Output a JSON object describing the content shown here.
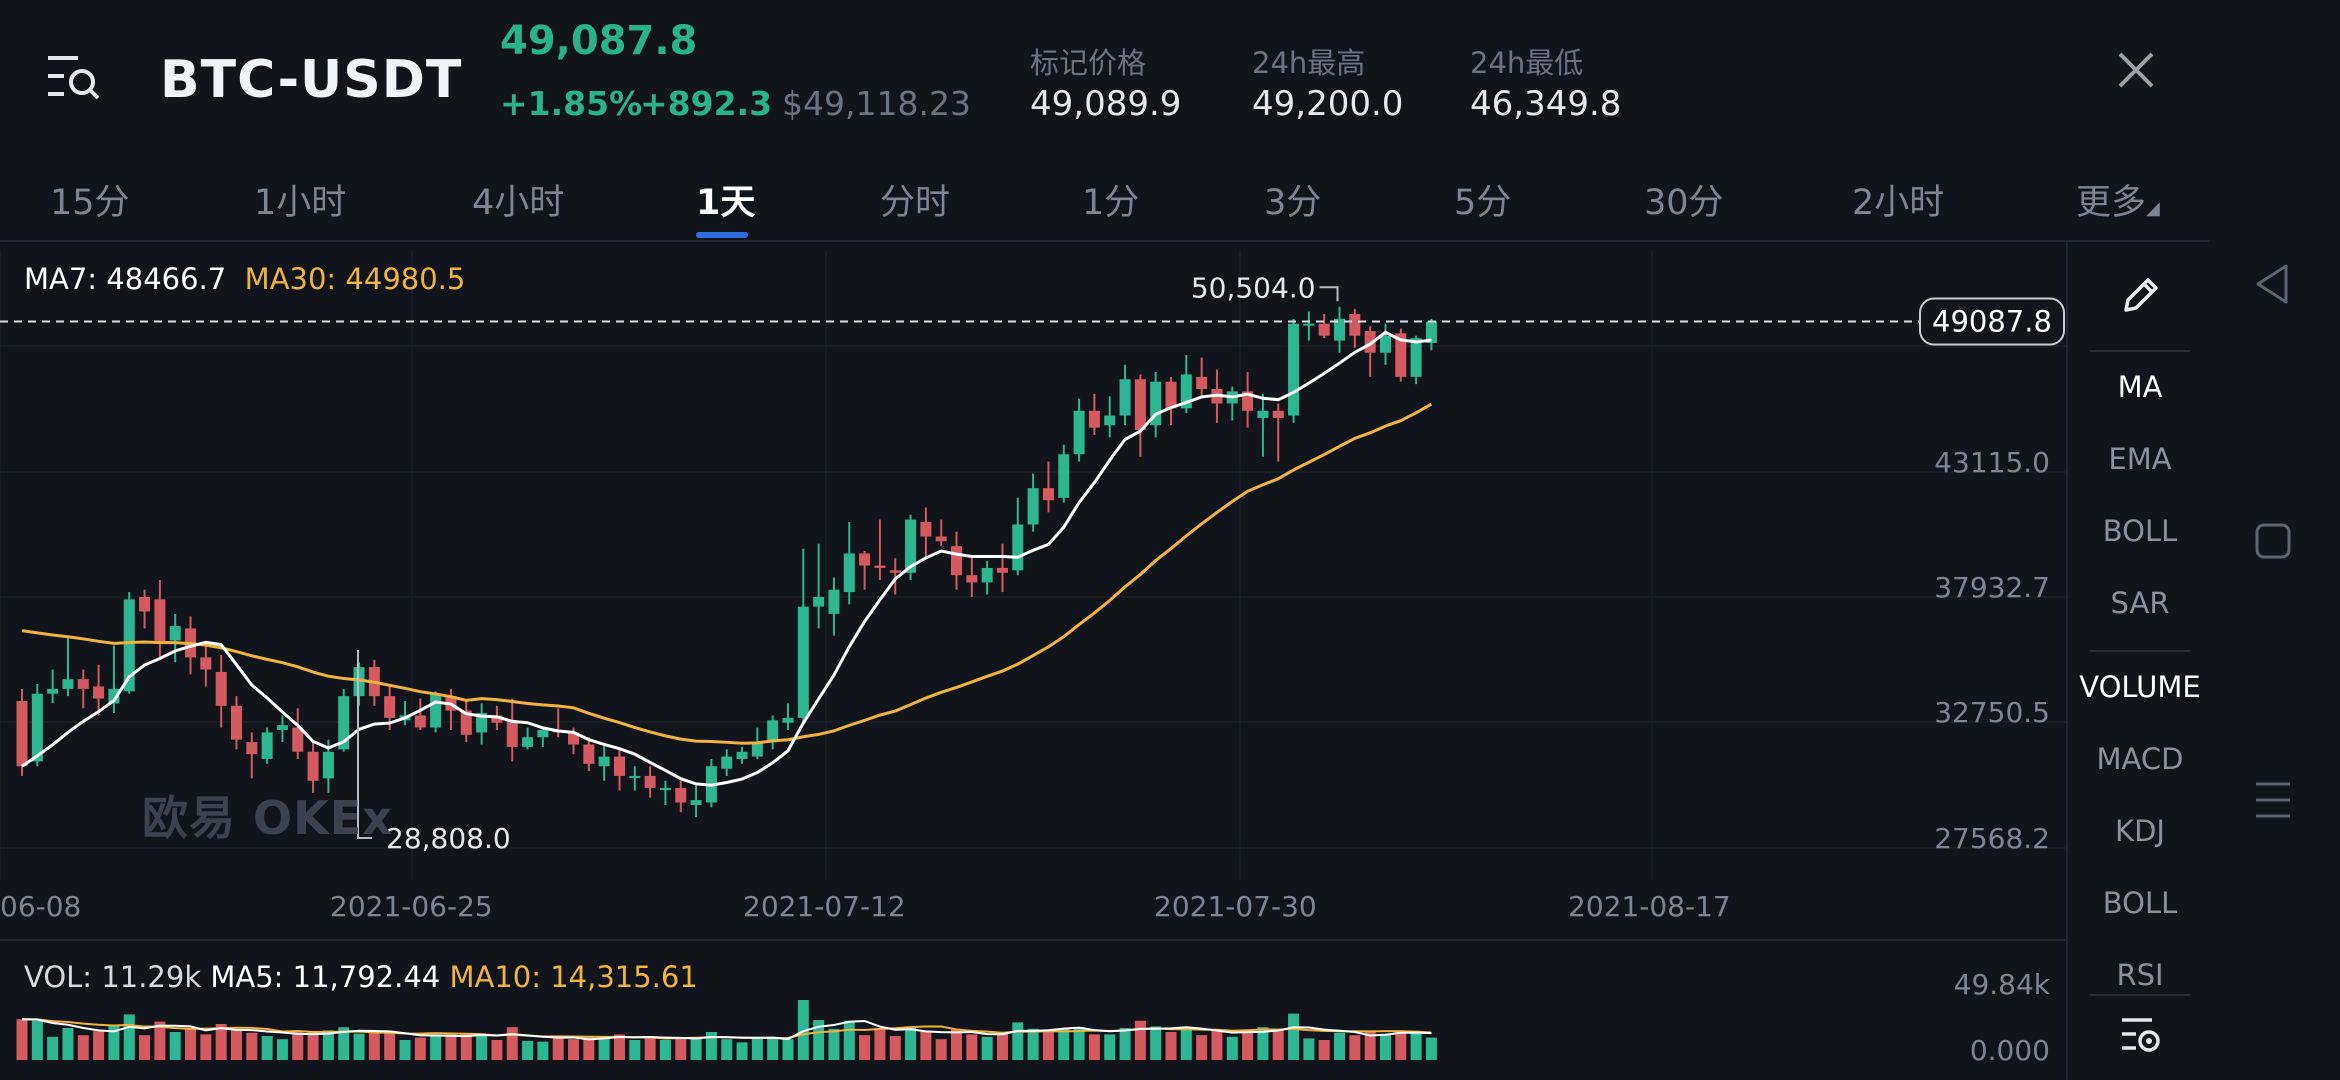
{
  "header": {
    "pair": "BTC-USDT",
    "last_price": "49,087.8",
    "change_pct": "+1.85%",
    "change_value": "+892.3",
    "usd_price": "$49,118.23",
    "stats": [
      {
        "label": "标记价格",
        "value": "49,089.9"
      },
      {
        "label": "24h最高",
        "value": "49,200.0"
      },
      {
        "label": "24h最低",
        "value": "46,349.8"
      }
    ]
  },
  "tabs": [
    "15分",
    "1小时",
    "4小时",
    "1天",
    "分时",
    "1分",
    "3分",
    "5分",
    "30分",
    "2小时",
    "更多"
  ],
  "active_tab": "1天",
  "main_chart": {
    "ma7_label": "MA7: 48466.7",
    "ma30_label": "MA30: 44980.5",
    "current_price_tag": "49087.8",
    "high_marker": "50,504.0",
    "low_marker": "28,808.0",
    "watermark": "欧易 OKEx",
    "price_axis": [
      "43115.0",
      "37932.7",
      "32750.5",
      "27568.2"
    ],
    "date_axis": [
      "06-08",
      "2021-06-25",
      "2021-07-12",
      "2021-07-30",
      "2021-08-17"
    ]
  },
  "volume_chart": {
    "vol_label": "VOL: 11.29k",
    "ma5_label": "MA5: 11,792.44",
    "ma10_label": "MA10: 14,315.61",
    "axis_top": "49.84k",
    "axis_bottom": "0.000"
  },
  "side_panel": {
    "items_main": [
      "MA",
      "EMA",
      "BOLL",
      "SAR"
    ],
    "items_sub": [
      "VOLUME",
      "MACD",
      "KDJ",
      "BOLL",
      "RSI"
    ]
  },
  "colors": {
    "up": "#2db692",
    "down": "#d45a5f",
    "ma7": "#ffffff",
    "ma30": "#f0b43c",
    "accent": "#2f6de1"
  },
  "chart_data": {
    "type": "candlestick",
    "interval": "1天",
    "candles": [
      {
        "o": 33400,
        "h": 33900,
        "l": 30300,
        "c": 30700
      },
      {
        "o": 30900,
        "h": 34100,
        "l": 30700,
        "c": 33700
      },
      {
        "o": 33700,
        "h": 34700,
        "l": 33300,
        "c": 33900
      },
      {
        "o": 33900,
        "h": 36100,
        "l": 33600,
        "c": 34300
      },
      {
        "o": 34300,
        "h": 34700,
        "l": 33100,
        "c": 33900
      },
      {
        "o": 34000,
        "h": 34900,
        "l": 32800,
        "c": 33500
      },
      {
        "o": 33300,
        "h": 35700,
        "l": 32900,
        "c": 33900
      },
      {
        "o": 33800,
        "h": 37900,
        "l": 33700,
        "c": 37600
      },
      {
        "o": 37700,
        "h": 38000,
        "l": 36400,
        "c": 37100
      },
      {
        "o": 37600,
        "h": 38400,
        "l": 35100,
        "c": 35800
      },
      {
        "o": 35900,
        "h": 37000,
        "l": 35000,
        "c": 36500
      },
      {
        "o": 36400,
        "h": 36900,
        "l": 34500,
        "c": 35200
      },
      {
        "o": 35200,
        "h": 35700,
        "l": 34000,
        "c": 34700
      },
      {
        "o": 34600,
        "h": 35300,
        "l": 32300,
        "c": 33200
      },
      {
        "o": 33200,
        "h": 33600,
        "l": 31400,
        "c": 31800
      },
      {
        "o": 31700,
        "h": 32100,
        "l": 30200,
        "c": 31200
      },
      {
        "o": 31000,
        "h": 32300,
        "l": 30800,
        "c": 32100
      },
      {
        "o": 32200,
        "h": 32800,
        "l": 31700,
        "c": 32400
      },
      {
        "o": 32300,
        "h": 33100,
        "l": 31000,
        "c": 31300
      },
      {
        "o": 31300,
        "h": 31700,
        "l": 29600,
        "c": 30100
      },
      {
        "o": 30200,
        "h": 31800,
        "l": 29600,
        "c": 31300
      },
      {
        "o": 31400,
        "h": 33900,
        "l": 31300,
        "c": 33600
      },
      {
        "o": 33600,
        "h": 35000,
        "l": 33200,
        "c": 34800
      },
      {
        "o": 34800,
        "h": 35100,
        "l": 33200,
        "c": 33600
      },
      {
        "o": 33600,
        "h": 34100,
        "l": 32200,
        "c": 32700
      },
      {
        "o": 32600,
        "h": 33400,
        "l": 32400,
        "c": 32800
      },
      {
        "o": 32800,
        "h": 33500,
        "l": 32200,
        "c": 32300
      },
      {
        "o": 32300,
        "h": 33800,
        "l": 32100,
        "c": 33700
      },
      {
        "o": 33600,
        "h": 33900,
        "l": 32200,
        "c": 33000
      },
      {
        "o": 33000,
        "h": 33400,
        "l": 31700,
        "c": 32000
      },
      {
        "o": 32100,
        "h": 33300,
        "l": 31600,
        "c": 32900
      },
      {
        "o": 32800,
        "h": 33200,
        "l": 32200,
        "c": 32500
      },
      {
        "o": 32600,
        "h": 33500,
        "l": 30900,
        "c": 31500
      },
      {
        "o": 31500,
        "h": 32300,
        "l": 31400,
        "c": 31900
      },
      {
        "o": 31900,
        "h": 32300,
        "l": 31500,
        "c": 32200
      },
      {
        "o": 32200,
        "h": 33100,
        "l": 31900,
        "c": 32100
      },
      {
        "o": 32100,
        "h": 32300,
        "l": 31200,
        "c": 31600
      },
      {
        "o": 31600,
        "h": 31900,
        "l": 30500,
        "c": 30800
      },
      {
        "o": 30700,
        "h": 31600,
        "l": 30100,
        "c": 31100
      },
      {
        "o": 31100,
        "h": 31400,
        "l": 29700,
        "c": 30300
      },
      {
        "o": 30300,
        "h": 30700,
        "l": 29700,
        "c": 30300
      },
      {
        "o": 30300,
        "h": 30700,
        "l": 29400,
        "c": 29800
      },
      {
        "o": 29800,
        "h": 30100,
        "l": 29100,
        "c": 29800
      },
      {
        "o": 29800,
        "h": 30100,
        "l": 28800,
        "c": 29200
      },
      {
        "o": 29100,
        "h": 29900,
        "l": 28600,
        "c": 29300
      },
      {
        "o": 29200,
        "h": 31000,
        "l": 29000,
        "c": 30700
      },
      {
        "o": 30600,
        "h": 31400,
        "l": 30300,
        "c": 31100
      },
      {
        "o": 31000,
        "h": 31500,
        "l": 30800,
        "c": 31300
      },
      {
        "o": 31100,
        "h": 32300,
        "l": 31000,
        "c": 31700
      },
      {
        "o": 31700,
        "h": 32800,
        "l": 31400,
        "c": 32600
      },
      {
        "o": 32500,
        "h": 33300,
        "l": 32200,
        "c": 32700
      },
      {
        "o": 32700,
        "h": 39700,
        "l": 32500,
        "c": 37300
      },
      {
        "o": 37300,
        "h": 39900,
        "l": 36400,
        "c": 37700
      },
      {
        "o": 37000,
        "h": 38500,
        "l": 36100,
        "c": 38000
      },
      {
        "o": 37900,
        "h": 40800,
        "l": 37400,
        "c": 39500
      },
      {
        "o": 39500,
        "h": 39600,
        "l": 38000,
        "c": 39000
      },
      {
        "o": 39000,
        "h": 40900,
        "l": 38400,
        "c": 38900
      },
      {
        "o": 38800,
        "h": 39300,
        "l": 37800,
        "c": 38700
      },
      {
        "o": 38700,
        "h": 41100,
        "l": 38400,
        "c": 40900
      },
      {
        "o": 40800,
        "h": 41400,
        "l": 39300,
        "c": 40200
      },
      {
        "o": 40200,
        "h": 40900,
        "l": 39800,
        "c": 40000
      },
      {
        "o": 39800,
        "h": 40400,
        "l": 38000,
        "c": 38600
      },
      {
        "o": 38600,
        "h": 39400,
        "l": 37700,
        "c": 38300
      },
      {
        "o": 38300,
        "h": 39200,
        "l": 37800,
        "c": 38900
      },
      {
        "o": 38900,
        "h": 39900,
        "l": 37900,
        "c": 38700
      },
      {
        "o": 38800,
        "h": 41800,
        "l": 38600,
        "c": 40700
      },
      {
        "o": 40700,
        "h": 42800,
        "l": 40400,
        "c": 42200
      },
      {
        "o": 42200,
        "h": 43300,
        "l": 41200,
        "c": 41700
      },
      {
        "o": 41800,
        "h": 44000,
        "l": 41600,
        "c": 43600
      },
      {
        "o": 43600,
        "h": 45900,
        "l": 43300,
        "c": 45400
      },
      {
        "o": 45400,
        "h": 46100,
        "l": 44400,
        "c": 44700
      },
      {
        "o": 44800,
        "h": 46000,
        "l": 44300,
        "c": 45200
      },
      {
        "o": 45200,
        "h": 47300,
        "l": 44800,
        "c": 46700
      },
      {
        "o": 46700,
        "h": 46900,
        "l": 43500,
        "c": 44600
      },
      {
        "o": 44800,
        "h": 47000,
        "l": 44300,
        "c": 46600
      },
      {
        "o": 46600,
        "h": 46800,
        "l": 44800,
        "c": 45500
      },
      {
        "o": 45500,
        "h": 47700,
        "l": 45300,
        "c": 46900
      },
      {
        "o": 46800,
        "h": 47600,
        "l": 46000,
        "c": 46300
      },
      {
        "o": 46300,
        "h": 47100,
        "l": 44900,
        "c": 45700
      },
      {
        "o": 45700,
        "h": 46400,
        "l": 45000,
        "c": 46200
      },
      {
        "o": 46200,
        "h": 47000,
        "l": 44700,
        "c": 45400
      },
      {
        "o": 45100,
        "h": 46100,
        "l": 43500,
        "c": 45400
      },
      {
        "o": 45400,
        "h": 45700,
        "l": 43300,
        "c": 45100
      },
      {
        "o": 45200,
        "h": 49200,
        "l": 44900,
        "c": 49000
      },
      {
        "o": 49000,
        "h": 49500,
        "l": 48300,
        "c": 49000
      },
      {
        "o": 49000,
        "h": 49400,
        "l": 48400,
        "c": 48500
      },
      {
        "o": 48300,
        "h": 49700,
        "l": 47800,
        "c": 49200
      },
      {
        "o": 49400,
        "h": 49600,
        "l": 48000,
        "c": 48500
      },
      {
        "o": 48700,
        "h": 48900,
        "l": 46800,
        "c": 47800
      },
      {
        "o": 47800,
        "h": 49000,
        "l": 47300,
        "c": 48500
      },
      {
        "o": 48600,
        "h": 48800,
        "l": 46600,
        "c": 46800
      },
      {
        "o": 46800,
        "h": 48500,
        "l": 46500,
        "c": 48400
      },
      {
        "o": 48200,
        "h": 49200,
        "l": 47900,
        "c": 49087.8
      }
    ]
  }
}
